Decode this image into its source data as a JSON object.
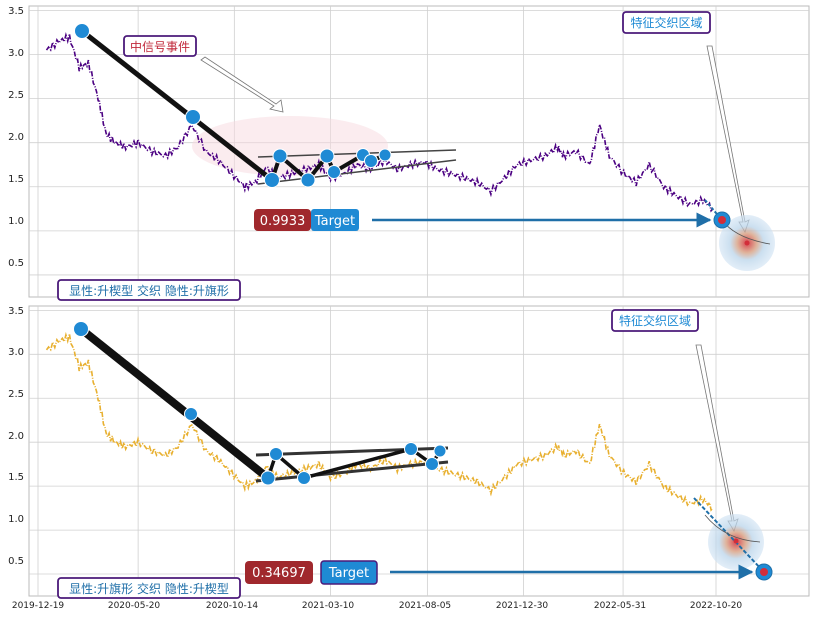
{
  "chart_data": [
    {
      "type": "line",
      "panel": "top",
      "series_color": "#4b0082",
      "y_ticks": [
        "0.5",
        "1.0",
        "1.5",
        "2.0",
        "2.5",
        "3.0",
        "3.5"
      ],
      "ylim": [
        0.25,
        3.55
      ],
      "series": [
        {
          "x": [
            "2020-01-01",
            "2020-01-20",
            "2020-02-05",
            "2020-02-20",
            "2020-03-05",
            "2020-03-20",
            "2020-04-01",
            "2020-04-15",
            "2020-05-01",
            "2020-05-20",
            "2020-06-10",
            "2020-07-01",
            "2020-07-20",
            "2020-08-10",
            "2020-09-01",
            "2020-09-20",
            "2020-10-10",
            "2020-10-30",
            "2020-11-15",
            "2020-12-01",
            "2020-12-20",
            "2021-01-10",
            "2021-02-01",
            "2021-02-20",
            "2021-03-10",
            "2021-04-01",
            "2021-04-20",
            "2021-05-10",
            "2021-06-01",
            "2021-06-20",
            "2021-07-10",
            "2021-08-01",
            "2021-08-20",
            "2021-09-10",
            "2021-10-01",
            "2021-10-20",
            "2021-11-10",
            "2021-12-01",
            "2021-12-20",
            "2022-01-10",
            "2022-02-01",
            "2022-02-20",
            "2022-03-01",
            "2022-03-20",
            "2022-04-10",
            "2022-04-25",
            "2022-05-10",
            "2022-06-01",
            "2022-06-20",
            "2022-07-10",
            "2022-08-01",
            "2022-08-20",
            "2022-09-10",
            "2022-09-30",
            "2022-10-15"
          ],
          "y": [
            3.05,
            3.15,
            3.2,
            2.85,
            2.9,
            2.5,
            2.1,
            2.0,
            1.95,
            2.0,
            1.9,
            1.85,
            1.95,
            2.2,
            1.9,
            1.8,
            1.65,
            1.5,
            1.55,
            1.72,
            1.6,
            1.65,
            1.7,
            1.75,
            1.6,
            1.65,
            1.75,
            1.7,
            1.8,
            1.7,
            1.75,
            1.78,
            1.7,
            1.65,
            1.6,
            1.55,
            1.45,
            1.6,
            1.75,
            1.8,
            1.85,
            1.95,
            1.85,
            1.9,
            1.75,
            2.2,
            1.85,
            1.65,
            1.55,
            1.75,
            1.5,
            1.4,
            1.3,
            1.35,
            1.25
          ]
        }
      ]
    },
    {
      "type": "line",
      "panel": "bottom",
      "series_color": "#e8b030",
      "y_ticks": [
        "0.5",
        "1.0",
        "1.5",
        "2.0",
        "2.5",
        "3.0",
        "3.5"
      ],
      "ylim": [
        0.25,
        3.55
      ],
      "x_ticks": [
        "2019-12-19",
        "2020-05-20",
        "2020-10-14",
        "2021-03-10",
        "2021-08-05",
        "2021-12-30",
        "2022-05-31",
        "2022-10-20"
      ],
      "series": [
        {
          "x": [
            "2020-01-01",
            "2020-01-20",
            "2020-02-05",
            "2020-02-20",
            "2020-03-05",
            "2020-03-20",
            "2020-04-01",
            "2020-04-15",
            "2020-05-01",
            "2020-05-20",
            "2020-06-10",
            "2020-07-01",
            "2020-07-20",
            "2020-08-10",
            "2020-09-01",
            "2020-09-20",
            "2020-10-10",
            "2020-10-30",
            "2020-11-15",
            "2020-12-01",
            "2020-12-20",
            "2021-01-10",
            "2021-02-01",
            "2021-02-20",
            "2021-03-10",
            "2021-04-01",
            "2021-04-20",
            "2021-05-10",
            "2021-06-01",
            "2021-06-20",
            "2021-07-10",
            "2021-08-01",
            "2021-08-20",
            "2021-09-10",
            "2021-10-01",
            "2021-10-20",
            "2021-11-10",
            "2021-12-01",
            "2021-12-20",
            "2022-01-10",
            "2022-02-01",
            "2022-02-20",
            "2022-03-01",
            "2022-03-20",
            "2022-04-10",
            "2022-04-25",
            "2022-05-10",
            "2022-06-01",
            "2022-06-20",
            "2022-07-10",
            "2022-08-01",
            "2022-08-20",
            "2022-09-10",
            "2022-09-30",
            "2022-10-15"
          ],
          "y": [
            3.05,
            3.15,
            3.2,
            2.85,
            2.9,
            2.5,
            2.1,
            2.0,
            1.95,
            2.0,
            1.9,
            1.85,
            1.95,
            2.2,
            1.9,
            1.8,
            1.65,
            1.5,
            1.55,
            1.72,
            1.6,
            1.65,
            1.7,
            1.75,
            1.6,
            1.65,
            1.75,
            1.7,
            1.8,
            1.7,
            1.75,
            1.78,
            1.7,
            1.65,
            1.6,
            1.55,
            1.45,
            1.6,
            1.75,
            1.8,
            1.85,
            1.95,
            1.85,
            1.9,
            1.75,
            2.2,
            1.85,
            1.65,
            1.55,
            1.75,
            1.5,
            1.4,
            1.3,
            1.35,
            1.25
          ]
        }
      ]
    }
  ],
  "annotations": {
    "top_event_label": "中信号事件",
    "top_feature_label": "特征交织区域",
    "top_value_badge": "0.9933",
    "top_target_label": "Target",
    "top_pattern_label": "显性:升楔型 交织 隐性:升旗形",
    "bottom_feature_label": "特征交织区域",
    "bottom_value_badge": "0.34697",
    "bottom_target_label": "Target",
    "bottom_pattern_label": "显性:升旗形 交织 隐性:升楔型"
  },
  "colors": {
    "badge_red": "#a0282d",
    "target_blue": "#1f8ad4",
    "marker_blue": "#1f8ad4",
    "label_purple_border": "#4b1a7a",
    "event_text_red": "#c0283a",
    "feature_text_blue": "#1f8ad4",
    "grid": "#cccccc"
  }
}
